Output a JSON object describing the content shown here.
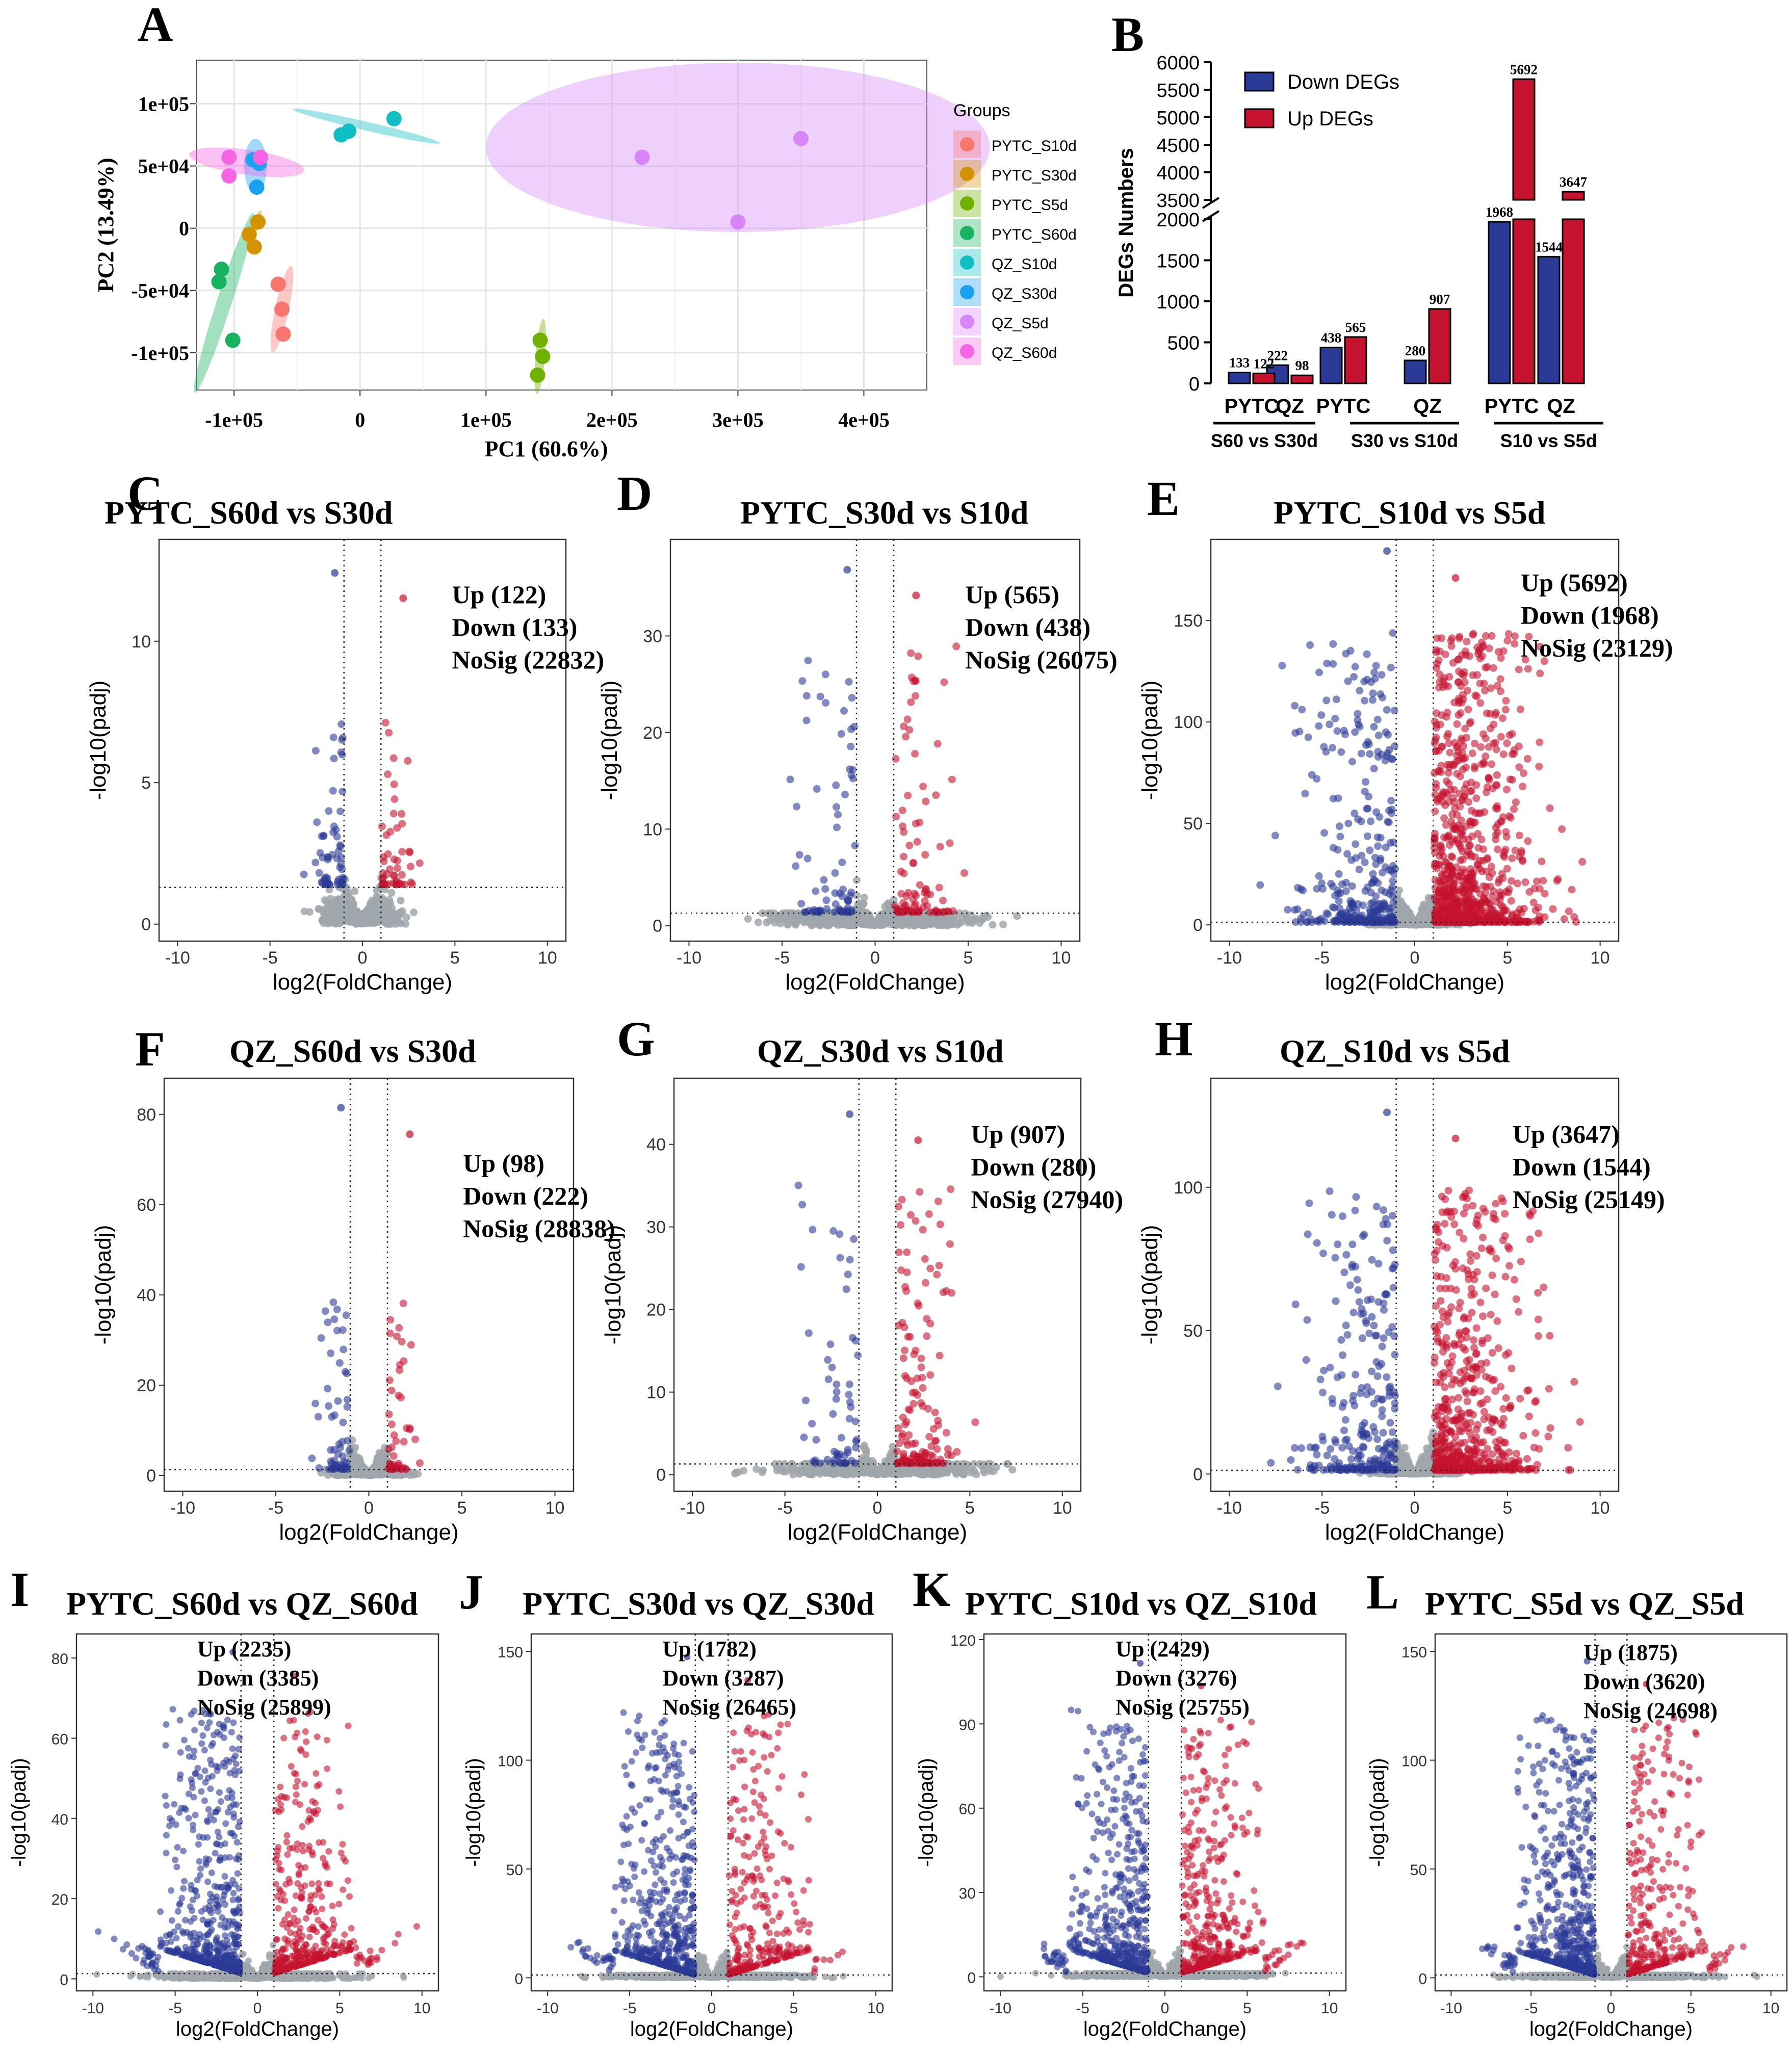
{
  "figure_labels": [
    "A",
    "B",
    "C",
    "D",
    "E",
    "F",
    "G",
    "H",
    "I",
    "J",
    "K",
    "L"
  ],
  "colors": {
    "down": "#2b3a96",
    "up": "#c4122f",
    "nosig": "#a0a7ab",
    "pytc_s10d": "#f8766d",
    "pytc_s30d": "#d39200",
    "pytc_s5d": "#6fb000",
    "pytc_s60d": "#17b360",
    "qz_s10d": "#10bfc4",
    "qz_s30d": "#1aa1f0",
    "qz_s5d": "#d686f6",
    "qz_s60d": "#f564e3"
  },
  "chart_data": [
    {
      "id": "A",
      "type": "scatter",
      "title": "",
      "xlabel": "PC1 (60.6%)",
      "ylabel": "PC2 (13.49%)",
      "xlim": [
        -130000,
        450000
      ],
      "ylim": [
        -130000,
        135000
      ],
      "x_ticks": [
        -100000,
        0,
        100000,
        200000,
        300000,
        400000
      ],
      "x_tick_labels": [
        "-1e+05",
        "0",
        "1e+05",
        "2e+05",
        "3e+05",
        "4e+05"
      ],
      "y_ticks": [
        -100000,
        -50000,
        0,
        50000,
        100000
      ],
      "y_tick_labels": [
        "-1e+05",
        "-5e+04",
        "0",
        "5e+04",
        "1e+05"
      ],
      "legend_title": "Groups",
      "legend_position": "right",
      "series": [
        {
          "name": "PYTC_S10d",
          "color": "#f8766d",
          "points": [
            [
              -65000,
              -45000
            ],
            [
              -62000,
              -65000
            ],
            [
              -61000,
              -85000
            ]
          ]
        },
        {
          "name": "PYTC_S30d",
          "color": "#d39200",
          "points": [
            [
              -88000,
              -5000
            ],
            [
              -84000,
              -15000
            ],
            [
              -81000,
              5000
            ]
          ]
        },
        {
          "name": "PYTC_S5d",
          "color": "#6fb000",
          "points": [
            [
              143000,
              -90000
            ],
            [
              145000,
              -103000
            ],
            [
              141000,
              -118000
            ]
          ]
        },
        {
          "name": "PYTC_S60d",
          "color": "#17b360",
          "points": [
            [
              -110000,
              -33000
            ],
            [
              -112000,
              -43000
            ],
            [
              -101000,
              -90000
            ]
          ]
        },
        {
          "name": "QZ_S10d",
          "color": "#10bfc4",
          "points": [
            [
              -15000,
              75000
            ],
            [
              -9000,
              78000
            ],
            [
              27000,
              88000
            ]
          ]
        },
        {
          "name": "QZ_S30d",
          "color": "#1aa1f0",
          "points": [
            [
              -85000,
              55000
            ],
            [
              -82000,
              33000
            ],
            [
              -80000,
              52000
            ]
          ]
        },
        {
          "name": "QZ_S5d",
          "color": "#d686f6",
          "points": [
            [
              224000,
              57000
            ],
            [
              350000,
              72000
            ],
            [
              300000,
              5000
            ]
          ]
        },
        {
          "name": "QZ_S60d",
          "color": "#f564e3",
          "points": [
            [
              -104000,
              57000
            ],
            [
              -104000,
              42000
            ],
            [
              -79000,
              57000
            ]
          ]
        }
      ]
    },
    {
      "id": "B",
      "type": "bar",
      "title": "",
      "ylabel": "DEGs Numbers",
      "y_ticks_lower": [
        0,
        500,
        1000,
        1500,
        2000
      ],
      "y_ticks_upper": [
        3500,
        4000,
        4500,
        5000,
        5500,
        6000
      ],
      "axis_break": [
        2000,
        3500
      ],
      "legend_position": "top-left",
      "series": [
        {
          "name": "Down DEGs",
          "color": "#2b3a96",
          "values": [
            133,
            222,
            438,
            280,
            1968,
            1544
          ]
        },
        {
          "name": "Up DEGs",
          "color": "#c4122f",
          "values": [
            122,
            98,
            565,
            907,
            5692,
            3647
          ]
        }
      ],
      "categories": [
        "PYTC",
        "QZ",
        "PYTC",
        "QZ",
        "PYTC",
        "QZ"
      ],
      "groups": [
        "S60 vs S30d",
        "S30 vs S10d",
        "S10 vs S5d"
      ]
    },
    {
      "id": "C",
      "type": "scatter",
      "title": "PYTC_S60d vs S30d",
      "xlabel": "log2(FoldChange)",
      "ylabel": "-log10(padj)",
      "xlim": [
        -11,
        11
      ],
      "ylim": [
        -0.6,
        13.6
      ],
      "x_ticks": [
        -10,
        -5,
        0,
        5,
        10
      ],
      "y_ticks": [
        0,
        5,
        10
      ],
      "stats": {
        "up": 122,
        "down": 133,
        "nosig": 22832
      },
      "stats_text": [
        "Up (122)",
        "Down (133)",
        "NoSig (22832)"
      ],
      "threshold_x": [
        -1,
        1
      ],
      "threshold_y": 1.3,
      "max_y": 12.8,
      "max_x": 3.5,
      "mode": "narrow",
      "stats_pos": [
        0.72,
        0.93
      ]
    },
    {
      "id": "D",
      "type": "scatter",
      "title": "PYTC_S30d vs S10d",
      "xlabel": "log2(FoldChange)",
      "ylabel": "-log10(padj)",
      "xlim": [
        -11,
        11
      ],
      "ylim": [
        -1.6,
        40
      ],
      "x_ticks": [
        -10,
        -5,
        0,
        5,
        10
      ],
      "y_ticks": [
        0,
        10,
        20,
        30
      ],
      "stats": {
        "up": 565,
        "down": 438,
        "nosig": 26075
      },
      "stats_text": [
        "Up (565)",
        "Down (438)",
        "NoSig (26075)"
      ],
      "threshold_x": [
        -1,
        1
      ],
      "threshold_y": 1.3,
      "max_y": 38,
      "max_x": 8.5,
      "mode": "mid",
      "stats_pos": [
        0.72,
        0.93
      ]
    },
    {
      "id": "E",
      "type": "scatter",
      "title": "PYTC_S10d vs S5d",
      "xlabel": "log2(FoldChange)",
      "ylabel": "-log10(padj)",
      "xlim": [
        -11,
        11
      ],
      "ylim": [
        -8,
        190
      ],
      "x_ticks": [
        -10,
        -5,
        0,
        5,
        10
      ],
      "y_ticks": [
        0,
        50,
        100,
        150
      ],
      "stats": {
        "up": 5692,
        "down": 1968,
        "nosig": 23129
      },
      "stats_text": [
        "Up (5692)",
        "Down (1968)",
        "NoSig (23129)"
      ],
      "threshold_x": [
        -1,
        1
      ],
      "threshold_y": 1.3,
      "max_y": 190,
      "max_x": 10,
      "mode": "wide",
      "stats_pos": [
        0.76,
        0.96
      ]
    },
    {
      "id": "F",
      "type": "scatter",
      "title": "QZ_S60d vs S30d",
      "xlabel": "log2(FoldChange)",
      "ylabel": "-log10(padj)",
      "xlim": [
        -11,
        11
      ],
      "ylim": [
        -3.5,
        88
      ],
      "x_ticks": [
        -10,
        -5,
        0,
        5,
        10
      ],
      "y_ticks": [
        0,
        20,
        40,
        60,
        80
      ],
      "stats": {
        "up": 98,
        "down": 222,
        "nosig": 28838
      },
      "stats_text": [
        "Up (98)",
        "Down (222)",
        "NoSig (28838)"
      ],
      "threshold_x": [
        -1,
        1
      ],
      "threshold_y": 1.3,
      "max_y": 84,
      "max_x": 7,
      "mode": "narrow",
      "stats_pos": [
        0.73,
        0.86
      ]
    },
    {
      "id": "G",
      "type": "scatter",
      "title": "QZ_S30d vs S10d",
      "xlabel": "log2(FoldChange)",
      "ylabel": "-log10(padj)",
      "xlim": [
        -11,
        11
      ],
      "ylim": [
        -2,
        48
      ],
      "x_ticks": [
        -10,
        -5,
        0,
        5,
        10
      ],
      "y_ticks": [
        0,
        10,
        20,
        30,
        40
      ],
      "stats": {
        "up": 907,
        "down": 280,
        "nosig": 27940
      },
      "stats_text": [
        "Up (907)",
        "Down (280)",
        "NoSig (27940)"
      ],
      "threshold_x": [
        -1,
        1
      ],
      "threshold_y": 1.3,
      "max_y": 45,
      "max_x": 8,
      "mode": "mid",
      "stats_pos": [
        0.73,
        0.93
      ]
    },
    {
      "id": "H",
      "type": "scatter",
      "title": "QZ_S10d vs S5d",
      "xlabel": "log2(FoldChange)",
      "ylabel": "-log10(padj)",
      "xlim": [
        -11,
        11
      ],
      "ylim": [
        -6,
        138
      ],
      "x_ticks": [
        -10,
        -5,
        0,
        5,
        10
      ],
      "y_ticks": [
        0,
        50,
        100
      ],
      "stats": {
        "up": 3647,
        "down": 1544,
        "nosig": 25149
      },
      "stats_text": [
        "Up (3647)",
        "Down (1544)",
        "NoSig (25149)"
      ],
      "threshold_x": [
        -1,
        1
      ],
      "threshold_y": 1.3,
      "max_y": 130,
      "max_x": 9,
      "mode": "wide",
      "stats_pos": [
        0.74,
        0.93
      ]
    },
    {
      "id": "I",
      "type": "scatter",
      "title": "PYTC_S60d vs QZ_S60d",
      "xlabel": "log2(FoldChange)",
      "ylabel": "-log10(padj)",
      "xlim": [
        -11,
        11
      ],
      "ylim": [
        -3,
        86
      ],
      "x_ticks": [
        -10,
        -5,
        0,
        5,
        10
      ],
      "y_ticks": [
        0,
        20,
        40,
        60,
        80
      ],
      "stats": {
        "up": 2235,
        "down": 3385,
        "nosig": 25899
      },
      "stats_text": [
        "Up (2235)",
        "Down (3385)",
        "NoSig (25899)"
      ],
      "threshold_x": [
        -1,
        1
      ],
      "threshold_y": 1.3,
      "max_y": 84,
      "max_x": 10,
      "mode": "full",
      "stats_pos": [
        0.39,
        0.98
      ]
    },
    {
      "id": "J",
      "type": "scatter",
      "title": "PYTC_S30d vs QZ_S30d",
      "xlabel": "log2(FoldChange)",
      "ylabel": "-log10(padj)",
      "xlim": [
        -11,
        11
      ],
      "ylim": [
        -6,
        158
      ],
      "x_ticks": [
        -10,
        -5,
        0,
        5,
        10
      ],
      "y_ticks": [
        0,
        50,
        100,
        150
      ],
      "stats": {
        "up": 1782,
        "down": 3287,
        "nosig": 26465
      },
      "stats_text": [
        "Up (1782)",
        "Down (3287)",
        "NoSig (26465)"
      ],
      "threshold_x": [
        -1,
        1
      ],
      "threshold_y": 1.3,
      "max_y": 152,
      "max_x": 10,
      "mode": "full",
      "stats_pos": [
        0.42,
        0.98
      ]
    },
    {
      "id": "K",
      "type": "scatter",
      "title": "PYTC_S10d vs QZ_S10d",
      "xlabel": "log2(FoldChange)",
      "ylabel": "-log10(padj)",
      "xlim": [
        -11,
        11
      ],
      "ylim": [
        -5,
        122
      ],
      "x_ticks": [
        -10,
        -5,
        0,
        5,
        10
      ],
      "y_ticks": [
        0,
        30,
        60,
        90,
        120
      ],
      "stats": {
        "up": 2429,
        "down": 3276,
        "nosig": 25755
      },
      "stats_text": [
        "Up (2429)",
        "Down (3276)",
        "NoSig (25755)"
      ],
      "threshold_x": [
        -1,
        1
      ],
      "threshold_y": 1.3,
      "max_y": 115,
      "max_x": 10,
      "mode": "full",
      "stats_pos": [
        0.42,
        0.98
      ]
    },
    {
      "id": "L",
      "type": "scatter",
      "title": "PYTC_S5d vs QZ_S5d",
      "xlabel": "log2(FoldChange)",
      "ylabel": "-log10(padj)",
      "xlim": [
        -11,
        11
      ],
      "ylim": [
        -6,
        158
      ],
      "x_ticks": [
        -10,
        -5,
        0,
        5,
        10
      ],
      "y_ticks": [
        0,
        50,
        100,
        150
      ],
      "stats": {
        "up": 1875,
        "down": 3620,
        "nosig": 24698
      },
      "stats_text": [
        "Up (1875)",
        "Down (3620)",
        "NoSig (24698)"
      ],
      "threshold_x": [
        -1,
        1
      ],
      "threshold_y": 1.3,
      "max_y": 150,
      "max_x": 10,
      "mode": "full",
      "stats_pos": [
        0.48,
        0.97
      ]
    }
  ]
}
